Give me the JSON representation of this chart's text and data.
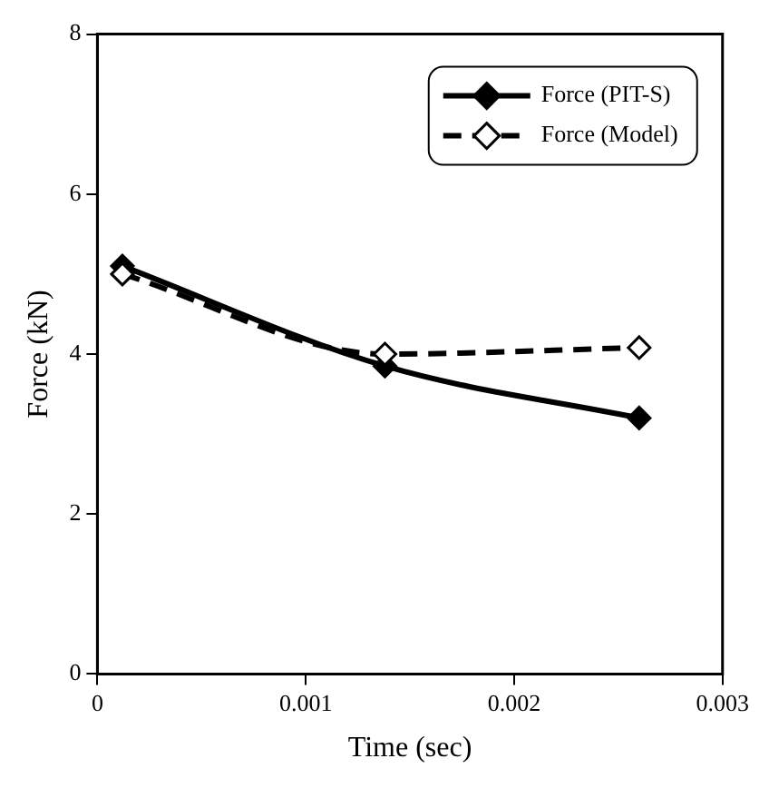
{
  "chart_data": {
    "type": "line",
    "xlabel": "Time (sec)",
    "ylabel": "Force (kN)",
    "xlim": [
      0,
      0.003
    ],
    "xticks": [
      0,
      0.001,
      0.002,
      0.003
    ],
    "ylim": [
      0,
      8
    ],
    "yticks": [
      0,
      2,
      4,
      6,
      8
    ],
    "grid": false,
    "legend": "top right",
    "marker": "diamond",
    "series": [
      {
        "name": "Force (PIT-S)",
        "color": "#000000",
        "line_style": "solid",
        "x": [
          0.00012,
          0.00138,
          0.0026
        ],
        "values": [
          5.1,
          3.85,
          3.2
        ]
      },
      {
        "name": "Force (Model)",
        "color": "#000000",
        "line_style": "dashed",
        "x": [
          0.00012,
          0.00138,
          0.0026
        ],
        "values": [
          5.0,
          4.0,
          4.08
        ]
      }
    ]
  }
}
